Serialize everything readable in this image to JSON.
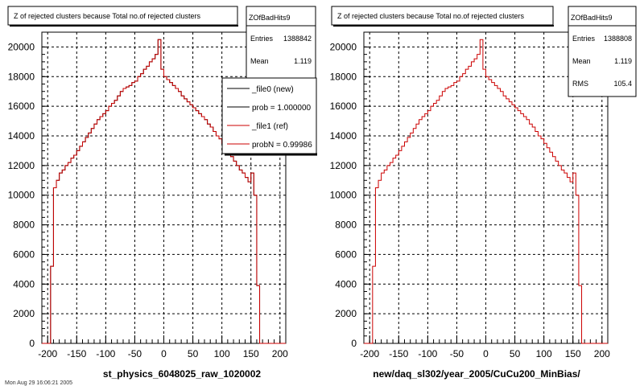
{
  "chart_data": [
    {
      "type": "histogram",
      "title": "Z of rejected clusters  because Total no.of rejected clusters",
      "xlabel": "st_physics_6048025_raw_1020002",
      "xlim": [
        -210,
        210
      ],
      "ylim": [
        0,
        21000
      ],
      "x_ticks": [
        -200,
        -150,
        -100,
        -50,
        0,
        50,
        100,
        150,
        200
      ],
      "y_ticks": [
        0,
        2000,
        4000,
        6000,
        8000,
        10000,
        12000,
        14000,
        16000,
        18000,
        20000
      ],
      "grid": true,
      "stats": {
        "name": "ZOfBadHits9",
        "entries_label": "Entries",
        "entries": "1388842",
        "mean_label": "Mean",
        "mean": "1.119",
        "rms_label": "RMS",
        "rms": ""
      },
      "legend": {
        "placement": "top-right",
        "entries": [
          {
            "label": "_file0 (new)",
            "color": "#000000"
          },
          {
            "label": "prob = 1.000000",
            "color": "#000000"
          },
          {
            "label": "_file1 (ref)",
            "color": "#cc0000"
          },
          {
            "label": "probN = 0.99986",
            "color": "#cc0000"
          }
        ]
      },
      "series": [
        {
          "color": "#000000",
          "x": [
            -210,
            -205,
            -200,
            -195,
            -190,
            -185,
            -180,
            -175,
            -170,
            -165,
            -160,
            -155,
            -150,
            -145,
            -140,
            -135,
            -130,
            -125,
            -120,
            -115,
            -110,
            -105,
            -100,
            -95,
            -90,
            -85,
            -80,
            -75,
            -70,
            -65,
            -60,
            -55,
            -50,
            -45,
            -40,
            -35,
            -30,
            -25,
            -20,
            -15,
            -10,
            -5,
            0,
            5,
            10,
            15,
            20,
            25,
            30,
            35,
            40,
            45,
            50,
            55,
            60,
            65,
            70,
            75,
            80,
            85,
            90,
            95,
            100,
            105,
            110,
            115,
            120,
            125,
            130,
            135,
            140,
            145,
            150,
            155,
            160,
            165,
            170,
            175,
            180,
            185,
            190,
            195,
            200,
            205
          ],
          "values": [
            0,
            0,
            0,
            5200,
            10500,
            11000,
            11500,
            11700,
            12000,
            12200,
            12500,
            12700,
            13000,
            13300,
            13600,
            13900,
            14200,
            14500,
            14800,
            15100,
            15300,
            15500,
            15700,
            16000,
            16200,
            16400,
            16700,
            17000,
            17200,
            17300,
            17400,
            17600,
            17700,
            18000,
            18200,
            18500,
            18700,
            19000,
            19200,
            19500,
            20500,
            18500,
            18000,
            17800,
            17600,
            17400,
            17200,
            17000,
            16700,
            16500,
            16300,
            16100,
            15900,
            15700,
            15500,
            15300,
            15100,
            14800,
            14600,
            14300,
            14000,
            13800,
            13500,
            13200,
            12900,
            12600,
            12300,
            12000,
            11700,
            11500,
            11200,
            10900,
            11500,
            10000,
            3900,
            0,
            0,
            0,
            0,
            0,
            0,
            0,
            0,
            0
          ]
        },
        {
          "color": "#cc0000",
          "x": [
            -210,
            -205,
            -200,
            -195,
            -190,
            -185,
            -180,
            -175,
            -170,
            -165,
            -160,
            -155,
            -150,
            -145,
            -140,
            -135,
            -130,
            -125,
            -120,
            -115,
            -110,
            -105,
            -100,
            -95,
            -90,
            -85,
            -80,
            -75,
            -70,
            -65,
            -60,
            -55,
            -50,
            -45,
            -40,
            -35,
            -30,
            -25,
            -20,
            -15,
            -10,
            -5,
            0,
            5,
            10,
            15,
            20,
            25,
            30,
            35,
            40,
            45,
            50,
            55,
            60,
            65,
            70,
            75,
            80,
            85,
            90,
            95,
            100,
            105,
            110,
            115,
            120,
            125,
            130,
            135,
            140,
            145,
            150,
            155,
            160,
            165,
            170,
            175,
            180,
            185,
            190,
            195,
            200,
            205
          ],
          "values": [
            0,
            0,
            0,
            5200,
            10500,
            11000,
            11500,
            11700,
            12000,
            12200,
            12500,
            12700,
            13000,
            13300,
            13600,
            13900,
            14200,
            14500,
            14800,
            15100,
            15300,
            15500,
            15700,
            16000,
            16200,
            16400,
            16700,
            17000,
            17200,
            17300,
            17400,
            17600,
            17700,
            18000,
            18200,
            18500,
            18700,
            19000,
            19200,
            19500,
            20500,
            18500,
            18000,
            17800,
            17600,
            17400,
            17200,
            17000,
            16700,
            16500,
            16300,
            16100,
            15900,
            15700,
            15500,
            15300,
            15100,
            14800,
            14600,
            14300,
            14000,
            13800,
            13500,
            13200,
            12900,
            12600,
            12300,
            12000,
            11700,
            11500,
            11200,
            10900,
            11500,
            10000,
            3900,
            0,
            0,
            0,
            0,
            0,
            0,
            0,
            0,
            0
          ]
        }
      ]
    },
    {
      "type": "histogram",
      "title": "Z of rejected clusters  because Total no.of rejected clusters",
      "xlabel": "new/daq_sl302/year_2005/CuCu200_MinBias/",
      "xlim": [
        -210,
        210
      ],
      "ylim": [
        0,
        21000
      ],
      "x_ticks": [
        -200,
        -150,
        -100,
        -50,
        0,
        50,
        100,
        150,
        200
      ],
      "y_ticks": [
        0,
        2000,
        4000,
        6000,
        8000,
        10000,
        12000,
        14000,
        16000,
        18000,
        20000
      ],
      "grid": true,
      "stats": {
        "name": "ZOfBadHits9",
        "entries_label": "Entries",
        "entries": "1388808",
        "mean_label": "Mean",
        "mean": "1.119",
        "rms_label": "RMS",
        "rms": "105.4"
      },
      "series": [
        {
          "color": "#cc0000",
          "x": [
            -210,
            -205,
            -200,
            -195,
            -190,
            -185,
            -180,
            -175,
            -170,
            -165,
            -160,
            -155,
            -150,
            -145,
            -140,
            -135,
            -130,
            -125,
            -120,
            -115,
            -110,
            -105,
            -100,
            -95,
            -90,
            -85,
            -80,
            -75,
            -70,
            -65,
            -60,
            -55,
            -50,
            -45,
            -40,
            -35,
            -30,
            -25,
            -20,
            -15,
            -10,
            -5,
            0,
            5,
            10,
            15,
            20,
            25,
            30,
            35,
            40,
            45,
            50,
            55,
            60,
            65,
            70,
            75,
            80,
            85,
            90,
            95,
            100,
            105,
            110,
            115,
            120,
            125,
            130,
            135,
            140,
            145,
            150,
            155,
            160,
            165,
            170,
            175,
            180,
            185,
            190,
            195,
            200,
            205
          ],
          "values": [
            0,
            0,
            0,
            5200,
            10500,
            11000,
            11500,
            11700,
            12000,
            12200,
            12500,
            12700,
            13000,
            13300,
            13600,
            13900,
            14200,
            14500,
            14800,
            15100,
            15300,
            15500,
            15700,
            16000,
            16200,
            16400,
            16700,
            17000,
            17200,
            17300,
            17400,
            17600,
            17700,
            18000,
            18200,
            18500,
            18700,
            19000,
            19200,
            19500,
            20500,
            18500,
            18000,
            17800,
            17600,
            17400,
            17200,
            17000,
            16700,
            16500,
            16300,
            16100,
            15900,
            15700,
            15500,
            15300,
            15100,
            14800,
            14600,
            14300,
            14000,
            13800,
            13500,
            13200,
            12900,
            12600,
            12300,
            12000,
            11700,
            11500,
            11200,
            10900,
            11500,
            10000,
            3900,
            0,
            0,
            0,
            0,
            0,
            0,
            0,
            0,
            0
          ]
        }
      ]
    }
  ],
  "footer": "Mon Aug 29 16:06:21 2005"
}
